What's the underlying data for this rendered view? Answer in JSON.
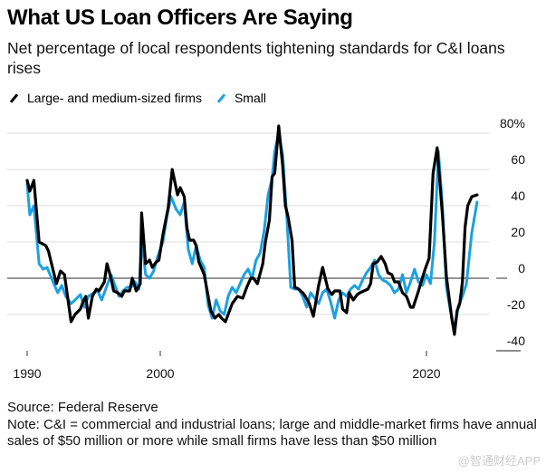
{
  "title": "What US Loan Officers Are Saying",
  "subtitle": "Net percentage of local respondents tightening standards for C&I loans rises",
  "legend": [
    {
      "label": "Large- and medium-sized firms",
      "color": "#000000"
    },
    {
      "label": "Small",
      "color": "#1ba1e2"
    }
  ],
  "footer": {
    "source": "Source: Federal Reserve",
    "note": "Note: C&I = commercial and industrial loans; large and middle-market firms have annual sales of $50 million or more while small firms have less than $50 million"
  },
  "watermark": "@智通财经APP",
  "chart_data": {
    "type": "line",
    "title": "What US Loan Officers Are Saying",
    "xlabel": "",
    "ylabel": "",
    "xlim": [
      1990,
      2024
    ],
    "ylim": [
      -40,
      80
    ],
    "x_ticks": [
      1990,
      2000,
      2020
    ],
    "x_tick_labels": [
      "1990",
      "2000",
      "2020"
    ],
    "y_ticks": [
      -40,
      -20,
      0,
      20,
      40,
      60,
      80
    ],
    "y_tick_labels": [
      "-40",
      "-20",
      "0",
      "20",
      "40",
      "60",
      "80%"
    ],
    "grid": true,
    "legend_position": "top-left",
    "series": [
      {
        "name": "Large- and medium-sized firms",
        "color": "#000000",
        "x": [
          1990.0,
          1990.2,
          1990.5,
          1990.9,
          1991.4,
          1991.6,
          1992.2,
          1992.5,
          1992.8,
          1993.3,
          1993.6,
          1994.0,
          1994.2,
          1994.4,
          1994.6,
          1994.9,
          1995.2,
          1995.4,
          1995.8,
          1996.0,
          1996.3,
          1996.5,
          1996.8,
          1997.1,
          1997.3,
          1997.7,
          1997.9,
          1998.2,
          1998.5,
          1998.6,
          1998.9,
          1999.2,
          1999.4,
          1999.7,
          1999.9,
          2000.2,
          2000.6,
          2000.9,
          2001.3,
          2001.5,
          2001.8,
          2002.0,
          2002.2,
          2002.5,
          2002.7,
          2002.9,
          2003.3,
          2003.8,
          2004.1,
          2004.4,
          2004.6,
          2004.9,
          2005.4,
          2005.8,
          2006.2,
          2006.5,
          2006.8,
          2007.0,
          2007.3,
          2007.7,
          2007.9,
          2008.2,
          2008.4,
          2008.6,
          2008.9,
          2009.2,
          2009.4,
          2009.6,
          2009.9,
          2010.1,
          2010.4,
          2010.7,
          2010.9,
          2011.2,
          2011.5,
          2011.9,
          2012.2,
          2012.6,
          2012.9,
          2013.1,
          2013.5,
          2013.7,
          2014.0,
          2014.2,
          2014.5,
          2014.8,
          2015.0,
          2015.3,
          2015.6,
          2015.8,
          2016.0,
          2016.3,
          2016.6,
          2016.9,
          2017.1,
          2017.4,
          2017.6,
          2017.9,
          2018.2,
          2018.5,
          2018.8,
          2019.0,
          2019.4,
          2019.6,
          2019.9,
          2020.2,
          2020.5,
          2020.8,
          2021.2,
          2021.5,
          2021.9,
          2022.1,
          2022.3,
          2022.5,
          2022.7,
          2022.9,
          2023.1,
          2023.4,
          2023.8
        ],
        "values": [
          54,
          48,
          54,
          20,
          18,
          15,
          -3,
          4,
          2,
          -24,
          -20,
          -17,
          -13,
          -10,
          -22,
          -10,
          -6,
          -7,
          -2,
          8,
          0,
          -7,
          -8,
          -10,
          -7,
          -7,
          0,
          -7,
          -3,
          36,
          8,
          10,
          6,
          9,
          10,
          24,
          39,
          60,
          46,
          50,
          45,
          28,
          21,
          21,
          18,
          9,
          2,
          -18,
          -22,
          -20,
          -22,
          -24,
          -14,
          -10,
          -11,
          -5,
          0,
          0,
          -3,
          8,
          20,
          32,
          56,
          58,
          84,
          62,
          40,
          34,
          21,
          -5,
          -6,
          -8,
          -10,
          -14,
          -21,
          -4,
          6,
          -6,
          -9,
          -7,
          -7,
          -17,
          -19,
          -8,
          -12,
          -9,
          -8,
          -7,
          -6,
          -3,
          8,
          9,
          12,
          8,
          3,
          2,
          -2,
          -2,
          -8,
          -10,
          -16,
          -16,
          -7,
          -2,
          5,
          11,
          58,
          72,
          35,
          1,
          -22,
          -31,
          -18,
          -14,
          -2,
          28,
          40,
          45,
          46
        ]
      },
      {
        "name": "Small",
        "color": "#1ba1e2",
        "x": [
          1990.0,
          1990.2,
          1990.5,
          1990.9,
          1991.2,
          1991.5,
          1992.0,
          1992.3,
          1992.6,
          1992.9,
          1993.3,
          1993.6,
          1994.0,
          1994.3,
          1994.6,
          1995.0,
          1995.3,
          1995.6,
          1996.0,
          1996.3,
          1996.6,
          1996.9,
          1997.2,
          1997.5,
          1997.8,
          1998.1,
          1998.4,
          1998.6,
          1998.9,
          1999.2,
          1999.5,
          1999.8,
          2000.2,
          2000.5,
          2000.8,
          2001.2,
          2001.5,
          2001.8,
          2002.1,
          2002.4,
          2002.7,
          2003.0,
          2003.3,
          2003.6,
          2003.9,
          2004.2,
          2004.5,
          2004.8,
          2005.1,
          2005.4,
          2005.7,
          2006.0,
          2006.3,
          2006.6,
          2006.9,
          2007.2,
          2007.5,
          2007.8,
          2008.1,
          2008.4,
          2008.6,
          2008.9,
          2009.2,
          2009.5,
          2009.8,
          2010.1,
          2010.4,
          2010.7,
          2011.0,
          2011.3,
          2011.6,
          2011.9,
          2012.2,
          2012.5,
          2012.8,
          2013.1,
          2013.4,
          2013.7,
          2014.0,
          2014.3,
          2014.6,
          2014.9,
          2015.2,
          2015.5,
          2015.8,
          2016.1,
          2016.4,
          2016.7,
          2017.0,
          2017.3,
          2017.6,
          2017.9,
          2018.2,
          2018.5,
          2018.8,
          2019.1,
          2019.4,
          2019.7,
          2020.0,
          2020.3,
          2020.6,
          2020.9,
          2021.2,
          2021.5,
          2021.8,
          2022.1,
          2022.4,
          2022.7,
          2023.0,
          2023.4,
          2023.8
        ],
        "values": [
          52,
          35,
          40,
          8,
          5,
          6,
          -3,
          -8,
          -4,
          -10,
          -14,
          -12,
          -9,
          -16,
          -10,
          -8,
          -7,
          -12,
          -4,
          2,
          -4,
          -10,
          -7,
          -5,
          -5,
          -2,
          -6,
          22,
          2,
          0,
          4,
          12,
          20,
          34,
          45,
          38,
          35,
          42,
          16,
          8,
          18,
          10,
          6,
          -15,
          -22,
          -12,
          -18,
          -20,
          -10,
          -5,
          -8,
          -3,
          2,
          5,
          0,
          10,
          14,
          26,
          46,
          55,
          70,
          80,
          68,
          35,
          -5,
          -6,
          -6,
          -10,
          -16,
          -8,
          -11,
          -14,
          -8,
          -6,
          -13,
          -22,
          -12,
          -8,
          -10,
          -6,
          -4,
          -6,
          -1,
          3,
          6,
          10,
          2,
          -1,
          -2,
          -4,
          -8,
          -6,
          2,
          -8,
          -2,
          5,
          -2,
          -4,
          2,
          -3,
          20,
          70,
          40,
          -5,
          -18,
          -28,
          -15,
          -10,
          -3,
          25,
          42
        ]
      }
    ]
  }
}
